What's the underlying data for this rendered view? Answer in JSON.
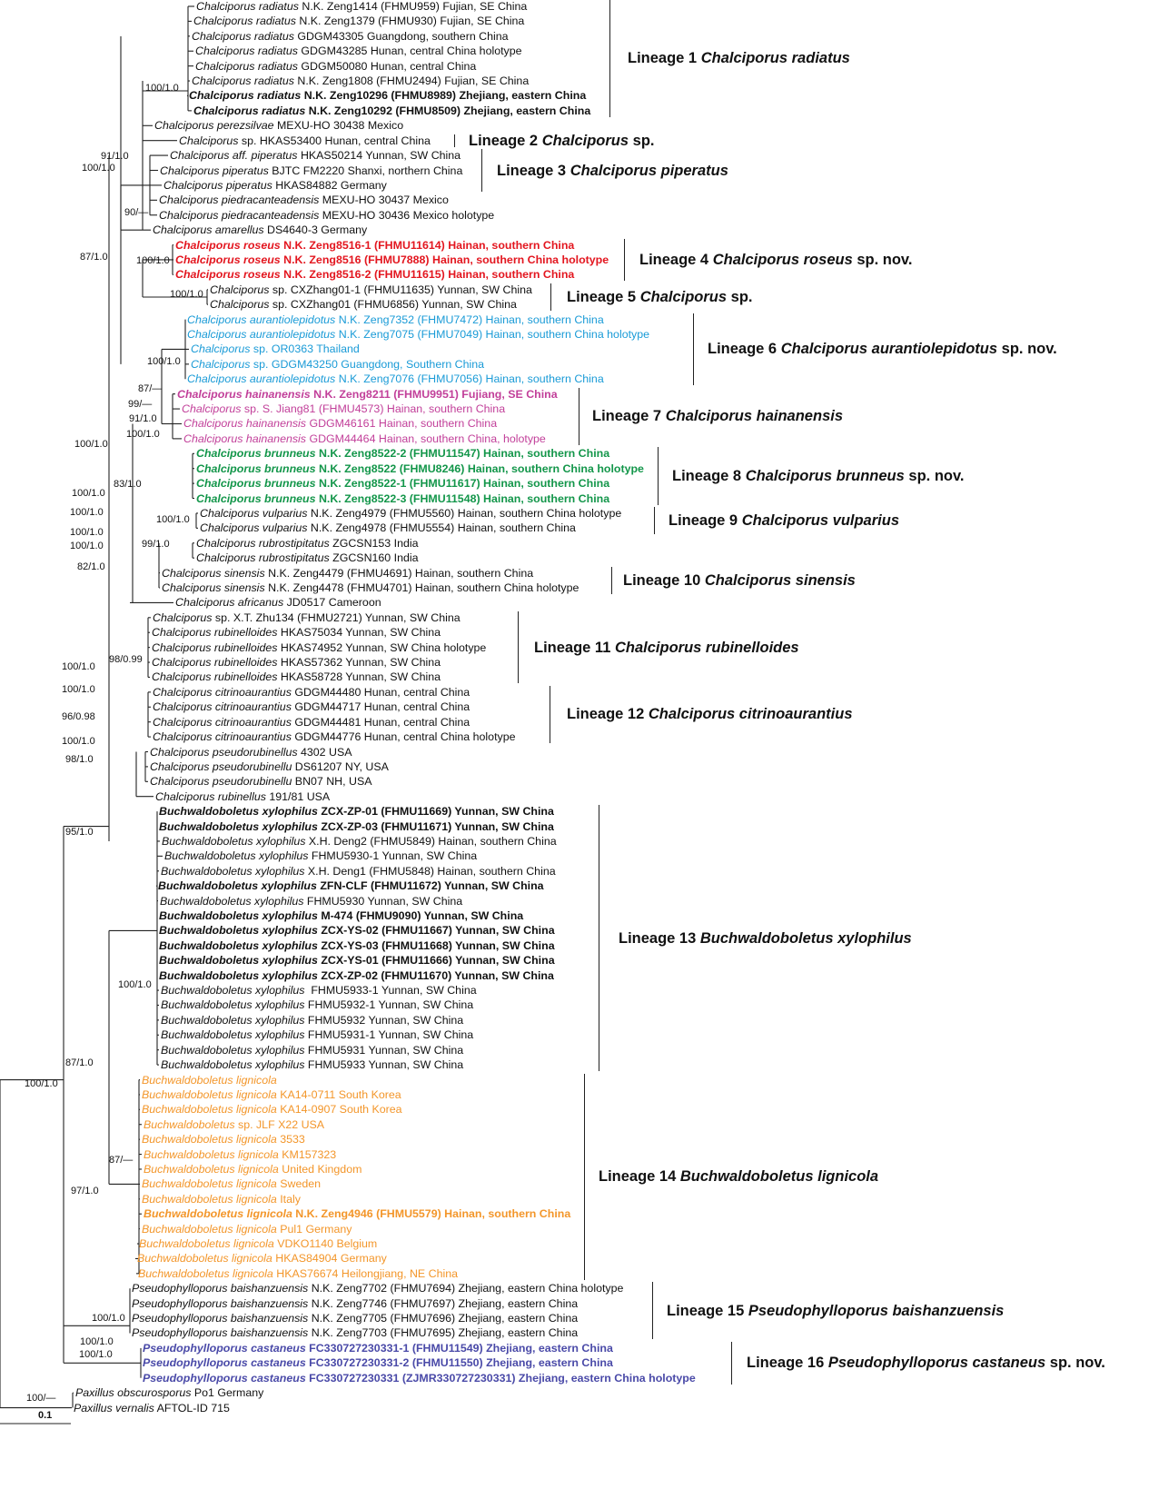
{
  "colors": {
    "default": "#111111",
    "roseus": "#e3161f",
    "aurantiolepidotus": "#1a9bd7",
    "hainanensis": "#c2409a",
    "brunneus": "#13964a",
    "lignicola": "#f3962a",
    "castaneus": "#4a4aa8"
  },
  "taxa": [
    {
      "name": "Chalciporus radiatus",
      "info": " N.K. Zeng1414 (FHMU959) Fujian, SE China"
    },
    {
      "name": "Chalciporus radiatus",
      "info": " N.K. Zeng1379 (FHMU930) Fujian, SE China"
    },
    {
      "name": "Chalciporus radiatus",
      "info": " GDGM43305 Guangdong, southern China"
    },
    {
      "name": "Chalciporus radiatus",
      "info": " GDGM43285 Hunan, central China holotype"
    },
    {
      "name": "Chalciporus radiatus",
      "info": " GDGM50080 Hunan, central China"
    },
    {
      "name": "Chalciporus radiatus",
      "info": " N.K. Zeng1808 (FHMU2494) Fujian, SE China"
    },
    {
      "name": "Chalciporus radiatus",
      "info": " N.K. Zeng10296 (FHMU8989) Zhejiang, eastern China",
      "bold": true
    },
    {
      "name": "Chalciporus radiatus",
      "info": " N.K. Zeng10292 (FHMU8509) Zhejiang, eastern China",
      "bold": true
    },
    {
      "name": "Chalciporus perezsilvae",
      "info": " MEXU-HO 30438 Mexico"
    },
    {
      "name": "Chalciporus",
      "info": " sp. HKAS53400 Hunan, central China"
    },
    {
      "name": "Chalciporus aff. piperatus",
      "info": " HKAS50214 Yunnan, SW China"
    },
    {
      "name": "Chalciporus piperatus",
      "info": " BJTC FM2220 Shanxi, northern China"
    },
    {
      "name": "Chalciporus piperatus",
      "info": " HKAS84882 Germany"
    },
    {
      "name": "Chalciporus piedracanteadensis",
      "info": " MEXU-HO 30437 Mexico"
    },
    {
      "name": "Chalciporus piedracanteadensis",
      "info": " MEXU-HO 30436 Mexico holotype"
    },
    {
      "name": "Chalciporus amarellus",
      "info": " DS4640-3 Germany"
    },
    {
      "name": "Chalciporus roseus",
      "info": " N.K. Zeng8516-1 (FHMU11614) Hainan, southern China",
      "bold": true,
      "color": "roseus"
    },
    {
      "name": "Chalciporus roseus",
      "info": " N.K. Zeng8516 (FHMU7888) Hainan, southern China holotype",
      "bold": true,
      "color": "roseus"
    },
    {
      "name": "Chalciporus roseus",
      "info": " N.K. Zeng8516-2 (FHMU11615) Hainan, southern China",
      "bold": true,
      "color": "roseus"
    },
    {
      "name": "Chalciporus",
      "info": " sp. CXZhang01-1 (FHMU11635) Yunnan, SW China"
    },
    {
      "name": "Chalciporus",
      "info": " sp. CXZhang01 (FHMU6856) Yunnan, SW China"
    },
    {
      "name": "Chalciporus aurantiolepidotus",
      "info": " N.K. Zeng7352 (FHMU7472) Hainan, southern China",
      "color": "aurantiolepidotus"
    },
    {
      "name": "Chalciporus aurantiolepidotus",
      "info": " N.K. Zeng7075 (FHMU7049) Hainan, southern China holotype",
      "color": "aurantiolepidotus"
    },
    {
      "name": "Chalciporus",
      "info": " sp. OR0363 Thailand",
      "color": "aurantiolepidotus"
    },
    {
      "name": "Chalciporus",
      "info": " sp. GDGM43250 Guangdong, Southern China",
      "color": "aurantiolepidotus"
    },
    {
      "name": "Chalciporus aurantiolepidotus",
      "info": " N.K. Zeng7076 (FHMU7056) Hainan, southern China",
      "color": "aurantiolepidotus"
    },
    {
      "name": "Chalciporus hainanensis",
      "info": " N.K. Zeng8211 (FHMU9951) Fujiang, SE China",
      "bold": true,
      "color": "hainanensis"
    },
    {
      "name": "Chalciporus",
      "info": " sp. S. Jiang81 (FHMU4573) Hainan, southern China",
      "color": "hainanensis"
    },
    {
      "name": "Chalciporus hainanensis",
      "info": " GDGM46161 Hainan, southern China",
      "color": "hainanensis"
    },
    {
      "name": "Chalciporus hainanensis",
      "info": " GDGM44464 Hainan, southern China, holotype",
      "color": "hainanensis"
    },
    {
      "name": "Chalciporus brunneus",
      "info": " N.K. Zeng8522-2 (FHMU11547) Hainan, southern China",
      "bold": true,
      "color": "brunneus"
    },
    {
      "name": "Chalciporus brunneus",
      "info": " N.K. Zeng8522 (FHMU8246) Hainan, southern China holotype",
      "bold": true,
      "color": "brunneus"
    },
    {
      "name": "Chalciporus brunneus",
      "info": " N.K. Zeng8522-1 (FHMU11617) Hainan, southern China",
      "bold": true,
      "color": "brunneus"
    },
    {
      "name": "Chalciporus brunneus",
      "info": " N.K. Zeng8522-3 (FHMU11548) Hainan, southern China",
      "bold": true,
      "color": "brunneus"
    },
    {
      "name": "Chalciporus vulparius",
      "info": " N.K. Zeng4979 (FHMU5560) Hainan, southern China holotype"
    },
    {
      "name": "Chalciporus vulparius",
      "info": " N.K. Zeng4978 (FHMU5554) Hainan, southern China"
    },
    {
      "name": "Chalciporus rubrostipitatus",
      "info": " ZGCSN153 India"
    },
    {
      "name": "Chalciporus rubrostipitatus",
      "info": " ZGCSN160 India"
    },
    {
      "name": "Chalciporus sinensis",
      "info": " N.K. Zeng4479 (FHMU4691) Hainan, southern China"
    },
    {
      "name": "Chalciporus sinensis",
      "info": " N.K. Zeng4478 (FHMU4701) Hainan, southern China holotype"
    },
    {
      "name": "Chalciporus africanus",
      "info": " JD0517 Cameroon"
    },
    {
      "name": "Chalciporus",
      "info": " sp. X.T. Zhu134 (FHMU2721) Yunnan, SW China"
    },
    {
      "name": "Chalciporus rubinelloides",
      "info": " HKAS75034 Yunnan, SW China"
    },
    {
      "name": "Chalciporus rubinelloides",
      "info": " HKAS74952 Yunnan, SW China holotype"
    },
    {
      "name": "Chalciporus rubinelloides",
      "info": " HKAS57362 Yunnan, SW China"
    },
    {
      "name": "Chalciporus rubinelloides",
      "info": " HKAS58728 Yunnan, SW China"
    },
    {
      "name": "Chalciporus citrinoaurantius",
      "info": " GDGM44480 Hunan, central China"
    },
    {
      "name": "Chalciporus citrinoaurantius",
      "info": " GDGM44717 Hunan, central China"
    },
    {
      "name": "Chalciporus citrinoaurantius",
      "info": " GDGM44481 Hunan, central China"
    },
    {
      "name": "Chalciporus citrinoaurantius",
      "info": " GDGM44776 Hunan, central China holotype"
    },
    {
      "name": "Chalciporus pseudorubinellus",
      "info": " 4302 USA"
    },
    {
      "name": "Chalciporus pseudorubinellu",
      "info": " DS61207 NY, USA"
    },
    {
      "name": "Chalciporus pseudorubinellu",
      "info": " BN07 NH, USA"
    },
    {
      "name": "Chalciporus rubinellus",
      "info": " 191/81 USA"
    },
    {
      "name": "Buchwaldoboletus xylophilus",
      "info": " ZCX-ZP-01 (FHMU11669) Yunnan, SW China",
      "bold": true
    },
    {
      "name": "Buchwaldoboletus xylophilus",
      "info": " ZCX-ZP-03 (FHMU11671) Yunnan, SW China",
      "bold": true
    },
    {
      "name": "Buchwaldoboletus xylophilus",
      "info": " X.H. Deng2 (FHMU5849) Hainan, southern China"
    },
    {
      "name": "Buchwaldoboletus xylophilus",
      "info": " FHMU5930-1 Yunnan, SW China"
    },
    {
      "name": "Buchwaldoboletus xylophilus",
      "info": " X.H. Deng1 (FHMU5848) Hainan, southern China"
    },
    {
      "name": "Buchwaldoboletus xylophilus",
      "info": " ZFN-CLF (FHMU11672) Yunnan, SW China",
      "bold": true
    },
    {
      "name": "Buchwaldoboletus xylophilus",
      "info": " FHMU5930 Yunnan, SW China"
    },
    {
      "name": "Buchwaldoboletus xylophilus",
      "info": " M-474 (FHMU9090) Yunnan, SW China",
      "bold": true
    },
    {
      "name": "Buchwaldoboletus xylophilus",
      "info": " ZCX-YS-02 (FHMU11667) Yunnan, SW China",
      "bold": true
    },
    {
      "name": "Buchwaldoboletus xylophilus",
      "info": " ZCX-YS-03 (FHMU11668) Yunnan, SW China",
      "bold": true
    },
    {
      "name": "Buchwaldoboletus xylophilus",
      "info": " ZCX-YS-01 (FHMU11666) Yunnan, SW China",
      "bold": true
    },
    {
      "name": "Buchwaldoboletus xylophilus",
      "info": " ZCX-ZP-02 (FHMU11670) Yunnan, SW China",
      "bold": true
    },
    {
      "name": "Buchwaldoboletus xylophilus",
      "info": "  FHMU5933-1 Yunnan, SW China"
    },
    {
      "name": "Buchwaldoboletus xylophilus",
      "info": " FHMU5932-1 Yunnan, SW China"
    },
    {
      "name": "Buchwaldoboletus xylophilus",
      "info": " FHMU5932 Yunnan, SW China"
    },
    {
      "name": "Buchwaldoboletus xylophilus",
      "info": " FHMU5931-1 Yunnan, SW China"
    },
    {
      "name": "Buchwaldoboletus xylophilus",
      "info": " FHMU5931 Yunnan, SW China"
    },
    {
      "name": "Buchwaldoboletus xylophilus",
      "info": " FHMU5933 Yunnan, SW China"
    },
    {
      "name": "Buchwaldoboletus lignicola",
      "info": "",
      "color": "lignicola"
    },
    {
      "name": "Buchwaldoboletus lignicola",
      "info": " KA14-0711 South Korea",
      "color": "lignicola"
    },
    {
      "name": "Buchwaldoboletus lignicola",
      "info": " KA14-0907 South Korea",
      "color": "lignicola"
    },
    {
      "name": "Buchwaldoboletus",
      "info": " sp. JLF X22 USA",
      "color": "lignicola"
    },
    {
      "name": "Buchwaldoboletus lignicola",
      "info": " 3533",
      "color": "lignicola"
    },
    {
      "name": "Buchwaldoboletus lignicola",
      "info": " KM157323",
      "color": "lignicola"
    },
    {
      "name": "Buchwaldoboletus lignicola",
      "info": " United Kingdom",
      "color": "lignicola"
    },
    {
      "name": "Buchwaldoboletus lignicola",
      "info": " Sweden",
      "color": "lignicola"
    },
    {
      "name": "Buchwaldoboletus lignicola",
      "info": " Italy",
      "color": "lignicola"
    },
    {
      "name": "Buchwaldoboletus lignicola",
      "info": " N.K. Zeng4946 (FHMU5579) Hainan, southern China",
      "bold": true,
      "color": "lignicola"
    },
    {
      "name": "Buchwaldoboletus lignicola",
      "info": " Pul1 Germany",
      "color": "lignicola"
    },
    {
      "name": "Buchwaldoboletus lignicola",
      "info": " VDKO1140 Belgium",
      "color": "lignicola"
    },
    {
      "name": "Buchwaldoboletus lignicola",
      "info": " HKAS84904 Germany",
      "color": "lignicola"
    },
    {
      "name": "Buchwaldoboletus lignicola",
      "info": " HKAS76674 Heilongjiang, NE China",
      "color": "lignicola"
    },
    {
      "name": "Pseudophylloporus baishanzuensis",
      "info": " N.K. Zeng7702 (FHMU7694) Zhejiang, eastern China holotype"
    },
    {
      "name": "Pseudophylloporus baishanzuensis",
      "info": " N.K. Zeng7746 (FHMU7697) Zhejiang, eastern China"
    },
    {
      "name": "Pseudophylloporus baishanzuensis",
      "info": " N.K. Zeng7705 (FHMU7696) Zhejiang, eastern China"
    },
    {
      "name": "Pseudophylloporus baishanzuensis",
      "info": " N.K. Zeng7703 (FHMU7695) Zhejiang, eastern China"
    },
    {
      "name": "Pseudophylloporus castaneus",
      "info": " FC330727230331-1 (FHMU11549) Zhejiang, eastern China",
      "bold": true,
      "color": "castaneus"
    },
    {
      "name": "Pseudophylloporus castaneus",
      "info": " FC330727230331-2 (FHMU11550) Zhejiang, eastern China",
      "bold": true,
      "color": "castaneus"
    },
    {
      "name": "Pseudophylloporus castaneus",
      "info": " FC330727230331 (ZJMR330727230331) Zhejiang, eastern China holotype",
      "bold": true,
      "color": "castaneus"
    },
    {
      "name": "Paxillus obscurosporus",
      "info": " Po1 Germany"
    },
    {
      "name": "Paxillus vernalis",
      "info": " AFTOL-ID 715"
    }
  ],
  "lineages": [
    {
      "prefix": "Lineage 1 ",
      "name": "Chalciporus radiatus",
      "suffix": ""
    },
    {
      "prefix": "Lineage 2 ",
      "name": "Chalciporus",
      "suffix": " sp."
    },
    {
      "prefix": "Lineage 3 ",
      "name": "Chalciporus piperatus",
      "suffix": ""
    },
    {
      "prefix": "Lineage 4 ",
      "name": "Chalciporus roseus",
      "suffix": " sp. nov."
    },
    {
      "prefix": "Lineage 5 ",
      "name": "Chalciporus",
      "suffix": " sp."
    },
    {
      "prefix": "Lineage 6 ",
      "name": "Chalciporus aurantiolepidotus",
      "suffix": " sp. nov."
    },
    {
      "prefix": "Lineage 7 ",
      "name": "Chalciporus hainanensis",
      "suffix": ""
    },
    {
      "prefix": "Lineage 8 ",
      "name": "Chalciporus brunneus",
      "suffix": " sp. nov."
    },
    {
      "prefix": "Lineage 9 ",
      "name": "Chalciporus vulparius",
      "suffix": ""
    },
    {
      "prefix": "Lineage 10 ",
      "name": "Chalciporus sinensis",
      "suffix": ""
    },
    {
      "prefix": "Lineage 11 ",
      "name": "Chalciporus rubinelloides",
      "suffix": ""
    },
    {
      "prefix": "Lineage 12 ",
      "name": "Chalciporus citrinoaurantius",
      "suffix": ""
    },
    {
      "prefix": "Lineage 13 ",
      "name": "Buchwaldoboletus xylophilus",
      "suffix": ""
    },
    {
      "prefix": "Lineage 14 ",
      "name": "Buchwaldoboletus lignicola",
      "suffix": ""
    },
    {
      "prefix": "Lineage 15 ",
      "name": "Pseudophylloporus baishanzuensis",
      "suffix": ""
    },
    {
      "prefix": "Lineage 16 ",
      "name": "Pseudophylloporus castaneus",
      "suffix": " sp. nov."
    }
  ],
  "support_values": [
    "100/1.0",
    "91/1.0",
    "100/1.0",
    "90/—",
    "87/1.0",
    "100/1.0",
    "100/1.0",
    "100/1.0",
    "87/—",
    "99/—",
    "91/1.0",
    "100/1.0",
    "100/1.0",
    "83/1.0",
    "100/1.0",
    "100/1.0",
    "100/1.0",
    "100/1.0",
    "99/1.0",
    "100/1.0",
    "82/1.0",
    "98/0.99",
    "100/1.0",
    "100/1.0",
    "96/0.98",
    "100/1.0",
    "98/1.0",
    "95/1.0",
    "87/1.0",
    "100/1.0",
    "100/1.0",
    "87/—",
    "97/1.0",
    "100/1.0",
    "100/1.0",
    "100/1.0",
    "100/—"
  ],
  "scale_bar": {
    "label": "0.1"
  }
}
